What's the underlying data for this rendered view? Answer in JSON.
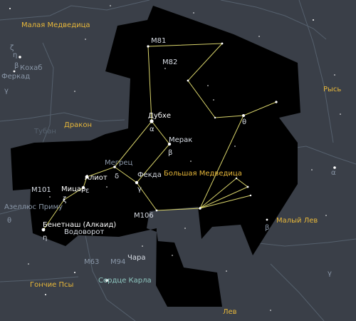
{
  "colors": {
    "sky": "#3a3f48",
    "region": "#000000",
    "boundary": "#55606d",
    "figure": "#d8d36a",
    "constellation_label": "#e8b83a",
    "star_label": "#ffffff",
    "object_label": "#d8dde5",
    "dim_label": "#8a97a8",
    "asterism_label": "#8fc7c0"
  },
  "constellations": {
    "ursa_minor": "Малая Медведица",
    "draco": "Дракон",
    "ursa_major": "Большая Медведица",
    "lynx": "Рысь",
    "leo_minor": "Малый Лев",
    "canes_venatici": "Гончие Псы",
    "leo": "Лев"
  },
  "stars": {
    "dubhe": "Дубхе",
    "merak": "Мерак",
    "megrez": "Мегрец",
    "phecda": "Фекда",
    "alioth": "Алиот",
    "mizar": "Мицар",
    "alkaid": "Бенетнаш (Алкаид)",
    "alcor": "Азеллюс Приму",
    "kochab": "Кохаб",
    "pherkad": "Феркад",
    "thuban": "Тубан",
    "chara": "Чара",
    "cor_caroli": "Сердце Карла"
  },
  "greek": {
    "alpha": "α",
    "beta": "β",
    "gamma": "γ",
    "delta": "δ",
    "epsilon": "ε",
    "zeta": "ζ",
    "eta": "η",
    "theta": "θ",
    "lynx_alpha": "α",
    "leo_minor_beta": "β",
    "leo_gamma": "γ",
    "cvn_theta": "θ",
    "umi_gamma": "γ",
    "umi_beta": "β",
    "umi_zeta": "ζ",
    "umi_eta": "η"
  },
  "objects": {
    "m81": "M81",
    "m82": "M82",
    "m101": "M101",
    "m106": "M106",
    "m63": "M63",
    "m94": "M94",
    "whirlpool": "Водоворот"
  }
}
